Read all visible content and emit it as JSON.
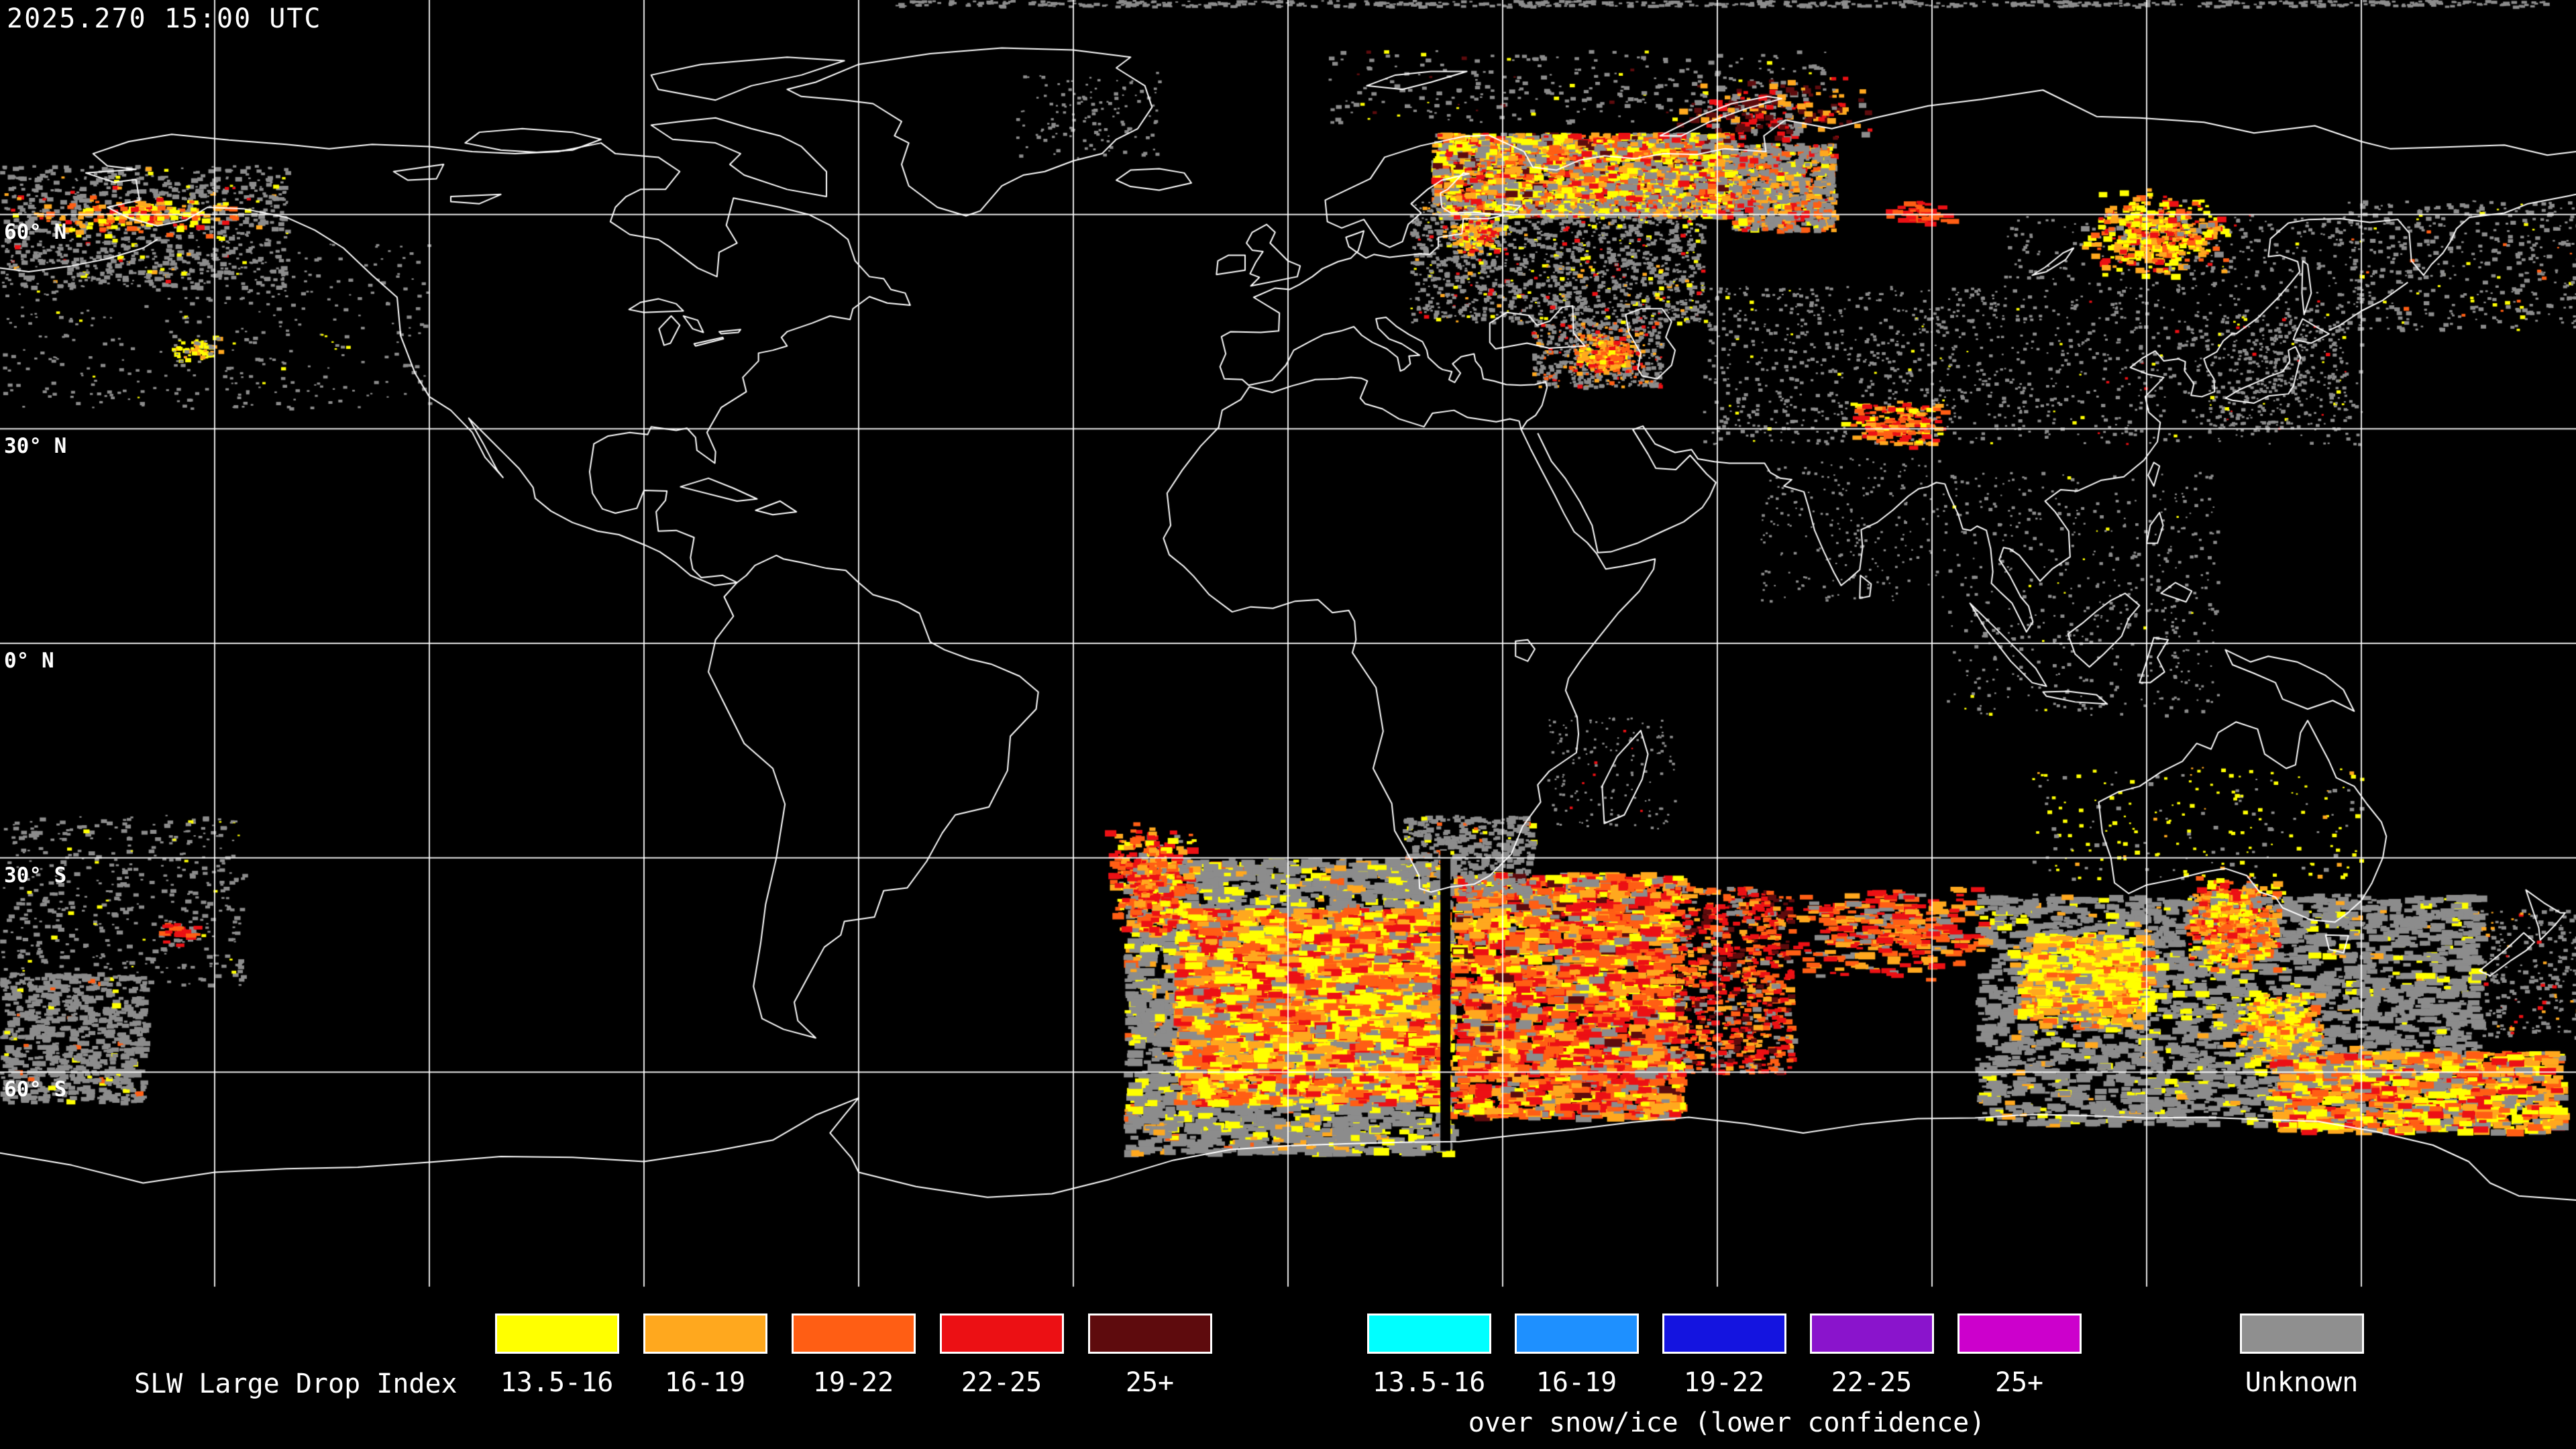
{
  "timestamp": "2025.270 15:00 UTC",
  "axis": {
    "lat_labels": [
      {
        "text": "60° N",
        "lat": 60
      },
      {
        "text": "30° N",
        "lat": 30
      },
      {
        "text": "0° N",
        "lat": 0
      },
      {
        "text": "30° S",
        "lat": -30
      },
      {
        "text": "60° S",
        "lat": -60
      }
    ]
  },
  "legend": {
    "title": "SLW Large Drop Index",
    "standard": [
      {
        "label": "13.5-16",
        "color": "#ffff00"
      },
      {
        "label": "16-19",
        "color": "#ffa81e"
      },
      {
        "label": "19-22",
        "color": "#ff5e14"
      },
      {
        "label": "22-25",
        "color": "#ec1014"
      },
      {
        "label": "25+",
        "color": "#5e0b0d"
      }
    ],
    "snow_ice": [
      {
        "label": "13.5-16",
        "color": "#00ffff"
      },
      {
        "label": "16-19",
        "color": "#1e90ff"
      },
      {
        "label": "19-22",
        "color": "#1414e0"
      },
      {
        "label": "22-25",
        "color": "#8a14cc"
      },
      {
        "label": "25+",
        "color": "#cc00cc"
      }
    ],
    "snow_ice_caption": "over snow/ice (lower confidence)",
    "unknown": {
      "label": "Unknown",
      "color": "#8f8f8f"
    }
  },
  "map": {
    "background": "#000000",
    "coastline_color": "#ffffff",
    "grid_color": "#ffffff",
    "grid_lon_step_deg": 30,
    "palette": {
      "Y": "#ffff00",
      "A": "#ffa81e",
      "O": "#ff5e14",
      "R": "#ec1014",
      "D": "#5e0b0d",
      "G": "#8c8c8c"
    },
    "overlay_regions": [
      {
        "name": "arctic-top-edge-gray",
        "lon": [
          -55,
          176
        ],
        "lat": [
          89.2,
          90
        ],
        "n": 600,
        "size": [
          2,
          5
        ],
        "stretch": 2,
        "weights": {
          "G": 1
        },
        "seed": 11
      },
      {
        "name": "bering-alaska-gray",
        "lon": [
          -180,
          -140
        ],
        "lat": [
          50,
          67
        ],
        "n": 900,
        "size": [
          2,
          7
        ],
        "stretch": 1.5,
        "weights": {
          "G": 0.93,
          "Y": 0.03,
          "A": 0.02,
          "R": 0.02
        },
        "seed": 21
      },
      {
        "name": "alaska-bright-cluster",
        "lon": [
          -174,
          -146
        ],
        "lat": [
          57.5,
          62.5
        ],
        "n": 180,
        "size": [
          3,
          8
        ],
        "stretch": 1.7,
        "gauss": true,
        "weights": {
          "A": 0.3,
          "O": 0.25,
          "Y": 0.25,
          "R": 0.2
        },
        "seed": 22
      },
      {
        "name": "gulf-alaska-yellow-spot",
        "lon": [
          -156,
          -149
        ],
        "lat": [
          39.5,
          43
        ],
        "n": 70,
        "size": [
          3,
          7
        ],
        "stretch": 1.4,
        "gauss": true,
        "weights": {
          "Y": 0.6,
          "A": 0.3,
          "G": 0.1
        },
        "seed": 23
      },
      {
        "name": "north-pacific-gray",
        "lon": [
          -180,
          -120
        ],
        "lat": [
          33,
          56
        ],
        "n": 400,
        "size": [
          2,
          5
        ],
        "stretch": 1.5,
        "weights": {
          "G": 0.97,
          "Y": 0.03
        },
        "seed": 24
      },
      {
        "name": "south-pacific-gray-upper",
        "lon": [
          -180,
          -146
        ],
        "lat": [
          -24,
          -48
        ],
        "n": 500,
        "size": [
          2,
          6
        ],
        "stretch": 1.6,
        "weights": {
          "G": 0.96,
          "Y": 0.04
        },
        "seed": 25
      },
      {
        "name": "south-pacific-gray-lower",
        "lon": [
          -180,
          -160
        ],
        "lat": [
          -46,
          -64
        ],
        "n": 750,
        "size": [
          3,
          8
        ],
        "stretch": 1.7,
        "weights": {
          "G": 0.95,
          "Y": 0.03,
          "O": 0.02
        },
        "seed": 26
      },
      {
        "name": "south-pacific-red-dash",
        "lon": [
          -158,
          -152
        ],
        "lat": [
          -39,
          -42
        ],
        "n": 28,
        "size": [
          3,
          7
        ],
        "stretch": 2.4,
        "gauss": true,
        "weights": {
          "R": 0.75,
          "O": 0.25
        },
        "seed": 27
      },
      {
        "name": "east-greenland-gray",
        "lon": [
          -38,
          -18
        ],
        "lat": [
          68,
          80
        ],
        "n": 130,
        "size": [
          2,
          5
        ],
        "stretch": 1.3,
        "weights": {
          "G": 1
        },
        "seed": 28
      },
      {
        "name": "barents-arctic-gray",
        "lon": [
          5,
          75
        ],
        "lat": [
          73,
          83
        ],
        "n": 280,
        "size": [
          2,
          6
        ],
        "stretch": 1.5,
        "weights": {
          "G": 0.9,
          "Y": 0.05,
          "D": 0.05
        },
        "seed": 29
      },
      {
        "name": "novaya-zemlya-dark-red",
        "lon": [
          55,
          80
        ],
        "lat": [
          71,
          79
        ],
        "n": 230,
        "size": [
          3,
          9
        ],
        "stretch": 1.5,
        "gauss": true,
        "weights": {
          "D": 0.35,
          "R": 0.2,
          "A": 0.2,
          "G": 0.25
        },
        "seed": 30
      },
      {
        "name": "scandinavia-russia-band",
        "lon": [
          20,
          62
        ],
        "lat": [
          60,
          71.5
        ],
        "n": 2700,
        "size": [
          3,
          10
        ],
        "stretch": 1.8,
        "weights": {
          "G": 0.3,
          "Y": 0.24,
          "A": 0.16,
          "O": 0.15,
          "R": 0.1,
          "D": 0.05
        },
        "seed": 31
      },
      {
        "name": "west-siberia-band",
        "lon": [
          62,
          76
        ],
        "lat": [
          58,
          70
        ],
        "n": 950,
        "size": [
          3,
          9
        ],
        "stretch": 1.5,
        "weights": {
          "G": 0.55,
          "A": 0.15,
          "O": 0.12,
          "R": 0.1,
          "Y": 0.08
        },
        "seed": 32
      },
      {
        "name": "east-europe-scatter",
        "lon": [
          17,
          58
        ],
        "lat": [
          45,
          62
        ],
        "n": 1500,
        "size": [
          2,
          6
        ],
        "stretch": 1.4,
        "weights": {
          "G": 0.86,
          "Y": 0.07,
          "A": 0.04,
          "R": 0.03
        },
        "seed": 33
      },
      {
        "name": "baltic-bright-specks",
        "lon": [
          22,
          30
        ],
        "lat": [
          55,
          60
        ],
        "n": 210,
        "size": [
          3,
          7
        ],
        "stretch": 1.4,
        "gauss": true,
        "weights": {
          "A": 0.3,
          "R": 0.25,
          "Y": 0.25,
          "G": 0.2
        },
        "seed": 34
      },
      {
        "name": "caucasus-gray",
        "lon": [
          34,
          52
        ],
        "lat": [
          36,
          45
        ],
        "n": 560,
        "size": [
          2,
          6
        ],
        "stretch": 1.3,
        "weights": {
          "G": 0.76,
          "A": 0.1,
          "O": 0.08,
          "R": 0.06
        },
        "seed": 35
      },
      {
        "name": "caucasus-orange-core",
        "lon": [
          40,
          48
        ],
        "lat": [
          38,
          43
        ],
        "n": 230,
        "size": [
          3,
          7
        ],
        "stretch": 1.5,
        "gauss": true,
        "weights": {
          "A": 0.4,
          "O": 0.3,
          "R": 0.2,
          "Y": 0.1
        },
        "seed": 36
      },
      {
        "name": "siberia-orange-dash",
        "lon": [
          84,
          92
        ],
        "lat": [
          59,
          62
        ],
        "n": 45,
        "size": [
          3,
          8
        ],
        "stretch": 2.4,
        "gauss": true,
        "weights": {
          "O": 0.5,
          "R": 0.5
        },
        "seed": 37
      },
      {
        "name": "central-asia-gray",
        "lon": [
          58,
          100
        ],
        "lat": [
          28,
          50
        ],
        "n": 700,
        "size": [
          2,
          5
        ],
        "stretch": 1.3,
        "weights": {
          "G": 0.96,
          "Y": 0.04
        },
        "seed": 38
      },
      {
        "name": "tibet-orange-streak",
        "lon": [
          78,
          92
        ],
        "lat": [
          28,
          34
        ],
        "n": 170,
        "size": [
          3,
          7
        ],
        "stretch": 2.2,
        "gauss": true,
        "weights": {
          "A": 0.35,
          "O": 0.3,
          "R": 0.25,
          "Y": 0.1
        },
        "seed": 39
      },
      {
        "name": "east-asia-gray",
        "lon": [
          100,
          150
        ],
        "lat": [
          28,
          60
        ],
        "n": 850,
        "size": [
          2,
          5
        ],
        "stretch": 1.3,
        "weights": {
          "G": 0.95,
          "Y": 0.03,
          "R": 0.02
        },
        "seed": 40
      },
      {
        "name": "ne-china-cluster",
        "lon": [
          112,
          130
        ],
        "lat": [
          52,
          63
        ],
        "n": 430,
        "size": [
          3,
          9
        ],
        "stretch": 1.6,
        "gauss": true,
        "weights": {
          "Y": 0.3,
          "A": 0.25,
          "O": 0.2,
          "R": 0.15,
          "G": 0.1
        },
        "seed": 41
      },
      {
        "name": "japan-area-gray",
        "lon": [
          128,
          148
        ],
        "lat": [
          30,
          46
        ],
        "n": 330,
        "size": [
          2,
          5
        ],
        "stretch": 1.3,
        "weights": {
          "G": 0.94,
          "Y": 0.03,
          "R": 0.03
        },
        "seed": 42
      },
      {
        "name": "kamchatka-bering-gray",
        "lon": [
          148,
          180
        ],
        "lat": [
          44,
          62
        ],
        "n": 430,
        "size": [
          2,
          6
        ],
        "stretch": 1.4,
        "weights": {
          "G": 0.93,
          "Y": 0.04,
          "O": 0.03
        },
        "seed": 43
      },
      {
        "name": "se-asia-gray",
        "lon": [
          92,
          130
        ],
        "lat": [
          -10,
          24
        ],
        "n": 520,
        "size": [
          2,
          5
        ],
        "stretch": 1.2,
        "weights": {
          "G": 0.97,
          "Y": 0.03
        },
        "seed": 44
      },
      {
        "name": "india-gray",
        "lon": [
          66,
          92
        ],
        "lat": [
          6,
          26
        ],
        "n": 230,
        "size": [
          2,
          4
        ],
        "stretch": 1.2,
        "weights": {
          "G": 1
        },
        "seed": 45
      },
      {
        "name": "south-africa-swath-gray-base",
        "lon": [
          -23,
          22
        ],
        "lat": [
          -30,
          -71
        ],
        "n": 3300,
        "size": [
          4,
          12
        ],
        "stretch": 2,
        "weights": {
          "G": 0.8,
          "Y": 0.12,
          "A": 0.05,
          "O": 0.03
        },
        "seed": 46
      },
      {
        "name": "south-africa-swath-tail",
        "lon": [
          -25,
          -14
        ],
        "lat": [
          -26,
          -40
        ],
        "n": 430,
        "size": [
          3,
          10
        ],
        "stretch": 1.8,
        "gauss": true,
        "weights": {
          "R": 0.3,
          "O": 0.3,
          "A": 0.2,
          "Y": 0.1,
          "G": 0.1
        },
        "seed": 47
      },
      {
        "name": "south-africa-swath-bright",
        "lon": [
          -16,
          21
        ],
        "lat": [
          -37,
          -64
        ],
        "n": 2800,
        "size": [
          4,
          12
        ],
        "stretch": 2.4,
        "weights": {
          "Y": 0.3,
          "A": 0.22,
          "O": 0.22,
          "R": 0.16,
          "G": 0.1
        },
        "seed": 48
      },
      {
        "name": "south-africa-swath-right",
        "lon": [
          22.7,
          54
        ],
        "lat": [
          -32,
          -66
        ],
        "n": 2800,
        "size": [
          4,
          12
        ],
        "stretch": 2.2,
        "weights": {
          "O": 0.28,
          "R": 0.24,
          "A": 0.2,
          "Y": 0.12,
          "G": 0.12,
          "D": 0.04
        },
        "seed": 49
      },
      {
        "name": "swath-right-sparse",
        "lon": [
          54,
          70
        ],
        "lat": [
          -34,
          -60
        ],
        "n": 800,
        "size": [
          3,
          8
        ],
        "stretch": 1.8,
        "weights": {
          "R": 0.3,
          "O": 0.25,
          "D": 0.15,
          "A": 0.15,
          "G": 0.15
        },
        "seed": 50
      },
      {
        "name": "south-africa-land-gray",
        "lon": [
          16,
          34
        ],
        "lat": [
          -24,
          -35
        ],
        "n": 430,
        "size": [
          3,
          8
        ],
        "stretch": 1.5,
        "weights": {
          "G": 0.92,
          "Y": 0.05,
          "O": 0.03
        },
        "seed": 51
      },
      {
        "name": "swath-black-seam",
        "lon": [
          21.3,
          22.7
        ],
        "lat": [
          -29,
          -71
        ],
        "fill": "#000000"
      },
      {
        "name": "indian-ocean-streaks",
        "lon": [
          70,
          96
        ],
        "lat": [
          -34,
          -46
        ],
        "n": 330,
        "size": [
          3,
          9
        ],
        "stretch": 2.8,
        "gauss": true,
        "weights": {
          "O": 0.3,
          "R": 0.3,
          "A": 0.25,
          "G": 0.15
        },
        "seed": 52
      },
      {
        "name": "madagascar-gray",
        "lon": [
          36,
          54
        ],
        "lat": [
          -10,
          -26
        ],
        "n": 150,
        "size": [
          2,
          4
        ],
        "stretch": 1.2,
        "weights": {
          "G": 0.97,
          "R": 0.03
        },
        "seed": 53
      },
      {
        "name": "australia-inland-yellow",
        "lon": [
          104,
          150
        ],
        "lat": [
          -17,
          -33
        ],
        "n": 210,
        "size": [
          2,
          6
        ],
        "stretch": 1.3,
        "weights": {
          "Y": 0.55,
          "G": 0.35,
          "A": 0.1
        },
        "seed": 54
      },
      {
        "name": "australia-south-swath-gray",
        "lon": [
          96,
          166
        ],
        "lat": [
          -35,
          -67
        ],
        "n": 3100,
        "size": [
          3,
          10
        ],
        "stretch": 2.2,
        "weights": {
          "G": 0.9,
          "Y": 0.07,
          "A": 0.03
        },
        "seed": 55
      },
      {
        "name": "sw-australia-yellow-cluster",
        "lon": [
          102,
          120
        ],
        "lat": [
          -41,
          -53
        ],
        "n": 800,
        "size": [
          4,
          11
        ],
        "stretch": 2.2,
        "gauss": true,
        "weights": {
          "Y": 0.45,
          "A": 0.3,
          "O": 0.15,
          "G": 0.1
        },
        "seed": 56
      },
      {
        "name": "bight-orange-cluster",
        "lon": [
          126,
          138
        ],
        "lat": [
          -33,
          -45
        ],
        "n": 540,
        "size": [
          3,
          9
        ],
        "stretch": 1.7,
        "gauss": true,
        "weights": {
          "A": 0.35,
          "O": 0.25,
          "Y": 0.25,
          "R": 0.1,
          "G": 0.05
        },
        "seed": 57
      },
      {
        "name": "tasman-yellow-cluster",
        "lon": [
          133,
          144
        ],
        "lat": [
          -49,
          -59
        ],
        "n": 440,
        "size": [
          4,
          10
        ],
        "stretch": 1.9,
        "gauss": true,
        "weights": {
          "Y": 0.45,
          "A": 0.25,
          "O": 0.15,
          "G": 0.15
        },
        "seed": 58
      },
      {
        "name": "se-of-nz-band",
        "lon": [
          137,
          177
        ],
        "lat": [
          -57,
          -68
        ],
        "n": 1000,
        "size": [
          4,
          11
        ],
        "stretch": 2.4,
        "weights": {
          "Y": 0.28,
          "A": 0.25,
          "O": 0.2,
          "R": 0.12,
          "G": 0.15
        },
        "seed": 59
      },
      {
        "name": "nz-east-gray",
        "lon": [
          166,
          180
        ],
        "lat": [
          -37,
          -55
        ],
        "n": 230,
        "size": [
          2,
          6
        ],
        "stretch": 1.4,
        "weights": {
          "G": 0.85,
          "R": 0.08,
          "A": 0.07
        },
        "seed": 60
      }
    ]
  }
}
